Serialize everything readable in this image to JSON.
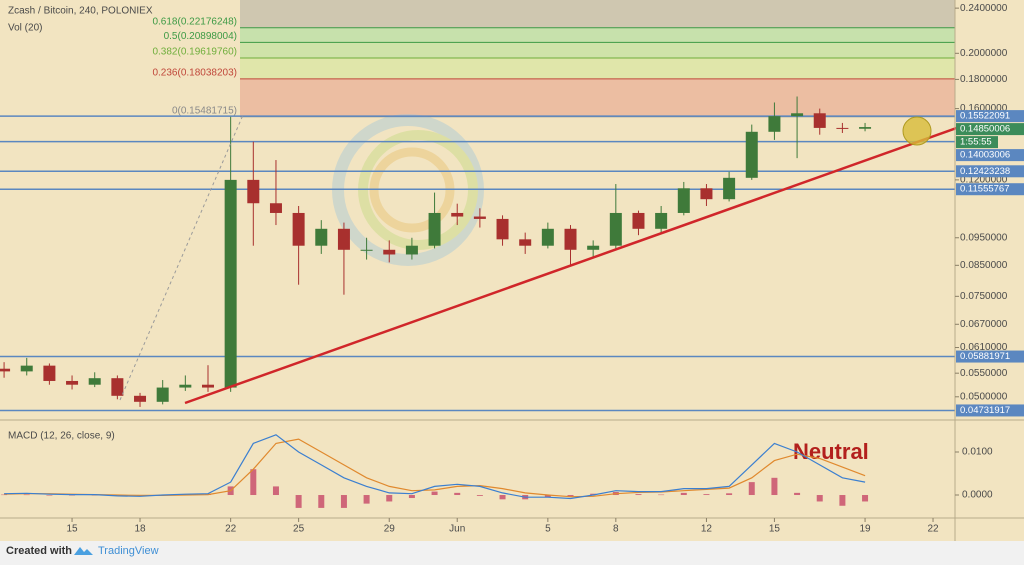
{
  "chart_data": {
    "type": "candlestick",
    "title": "Zcash / Bitcoin, 240, POLONIEX",
    "volume_label": "Vol (20)",
    "log": true,
    "ylim": [
      0.0459,
      0.248
    ],
    "yticks": [
      {
        "value": 0.24,
        "label": "0.2400000"
      },
      {
        "value": 0.2,
        "label": "0.2000000"
      },
      {
        "value": 0.18,
        "label": "0.1800000"
      },
      {
        "value": 0.16,
        "label": "0.1600000"
      },
      {
        "value": 0.12,
        "label": "0.1200000"
      },
      {
        "value": 0.095,
        "label": "0.0950000"
      },
      {
        "value": 0.085,
        "label": "0.0850000"
      },
      {
        "value": 0.075,
        "label": "0.0750000"
      },
      {
        "value": 0.067,
        "label": "0.0670000"
      },
      {
        "value": 0.061,
        "label": "0.0610000"
      },
      {
        "value": 0.055,
        "label": "0.0550000"
      },
      {
        "value": 0.05,
        "label": "0.0500000"
      }
    ],
    "xlim": [
      -3.18,
      38.97
    ],
    "xticks": [
      {
        "value": 0,
        "label": "15"
      },
      {
        "value": 3,
        "label": "18"
      },
      {
        "value": 7,
        "label": "22"
      },
      {
        "value": 10,
        "label": "25"
      },
      {
        "value": 14,
        "label": "29"
      },
      {
        "value": 17,
        "label": "Jun"
      },
      {
        "value": 21,
        "label": "5"
      },
      {
        "value": 24,
        "label": "8"
      },
      {
        "value": 28,
        "label": "12"
      },
      {
        "value": 31,
        "label": "15"
      },
      {
        "value": 35,
        "label": "19"
      },
      {
        "value": 38,
        "label": "22"
      }
    ],
    "x": [
      -3,
      -2,
      -1,
      0,
      1,
      2,
      3,
      4,
      5,
      6,
      7,
      8,
      9,
      10,
      11,
      12,
      13,
      14,
      15,
      16,
      17,
      18,
      19,
      20,
      21,
      22,
      23,
      24,
      25,
      26,
      27,
      28,
      29,
      30,
      31,
      32,
      33,
      34,
      35
    ],
    "open": [
      0.056,
      0.0554,
      0.0567,
      0.0533,
      0.0525,
      0.0539,
      0.0502,
      0.049,
      0.0519,
      0.0525,
      0.0519,
      0.12,
      0.1092,
      0.105,
      0.092,
      0.0985,
      0.0905,
      0.0905,
      0.0888,
      0.092,
      0.105,
      0.1035,
      0.1025,
      0.0944,
      0.092,
      0.0985,
      0.0905,
      0.092,
      0.105,
      0.0985,
      0.105,
      0.116,
      0.111,
      0.121,
      0.1457,
      0.1552,
      0.157,
      0.148,
      0.1475
    ],
    "high": [
      0.0575,
      0.0585,
      0.0572,
      0.0545,
      0.0552,
      0.0545,
      0.0508,
      0.0535,
      0.0545,
      0.0568,
      0.1548,
      0.14,
      0.13,
      0.108,
      0.102,
      0.101,
      0.095,
      0.094,
      0.095,
      0.114,
      0.109,
      0.107,
      0.104,
      0.097,
      0.101,
      0.1,
      0.094,
      0.118,
      0.106,
      0.108,
      0.119,
      0.118,
      0.124,
      0.15,
      0.164,
      0.168,
      0.16,
      0.151,
      0.151
    ],
    "low": [
      0.054,
      0.0545,
      0.0525,
      0.0515,
      0.052,
      0.0495,
      0.048,
      0.0485,
      0.0512,
      0.051,
      0.051,
      0.092,
      0.1,
      0.0786,
      0.089,
      0.0755,
      0.087,
      0.086,
      0.087,
      0.091,
      0.1,
      0.099,
      0.092,
      0.089,
      0.091,
      0.085,
      0.088,
      0.091,
      0.096,
      0.097,
      0.104,
      0.108,
      0.11,
      0.12,
      0.141,
      0.131,
      0.144,
      0.145,
      0.146
    ],
    "close": [
      0.0554,
      0.0567,
      0.0533,
      0.0525,
      0.0539,
      0.0502,
      0.049,
      0.0519,
      0.0525,
      0.0519,
      0.12,
      0.1092,
      0.105,
      0.092,
      0.0985,
      0.0905,
      0.0905,
      0.0888,
      0.092,
      0.105,
      0.1035,
      0.1025,
      0.0944,
      0.092,
      0.0985,
      0.0905,
      0.092,
      0.105,
      0.0985,
      0.105,
      0.116,
      0.111,
      0.121,
      0.1457,
      0.1552,
      0.157,
      0.148,
      0.1475,
      0.1485
    ],
    "up_color": "#3f7a3a",
    "down_color": "#a8302e",
    "hlines": [
      0.15522091,
      0.14003006,
      0.12423238,
      0.11555767,
      0.05881971,
      0.04731917
    ],
    "hline_color": "#5b87c0",
    "last_price": 0.14850006,
    "last_color": "#3c8c5a",
    "countdown": "1:55:55",
    "fib": [
      {
        "value": 0.15481715,
        "label": "0(0.15481715)",
        "color": "#8a8a8a"
      },
      {
        "value": 0.18038203,
        "label": "0.236(0.18038203)",
        "color": "#c0473a"
      },
      {
        "value": 0.1961976,
        "label": "0.382(0.19619760)",
        "color": "#6fae3c"
      },
      {
        "value": 0.20898004,
        "label": "0.5(0.20898004)",
        "color": "#3d9a45"
      },
      {
        "value": 0.22176248,
        "label": "0.618(0.22176248)",
        "color": "#3d9a45"
      }
    ],
    "annotation": "Neutral",
    "macd": {
      "title": "MACD (12, 26, close, 9)",
      "ylim": [
        -0.00488,
        0.01628
      ],
      "yticks": [
        {
          "value": 0.01,
          "label": "0.0100"
        },
        {
          "value": 0,
          "label": "0.0000"
        }
      ],
      "macd": {
        "color": "#3b7fd0",
        "values": [
          0.0003,
          0.0004,
          0.0002,
          0.0001,
          0.0001,
          -0.0002,
          -0.0003,
          0,
          0.0002,
          0.0003,
          0.003,
          0.012,
          0.014,
          0.01,
          0.007,
          0.004,
          0.002,
          0.0005,
          0.0003,
          0.002,
          0.0025,
          0.002,
          0.0005,
          -0.0005,
          -0.0005,
          -0.0008,
          0,
          0.001,
          0.0008,
          0.0008,
          0.0015,
          0.0015,
          0.002,
          0.007,
          0.012,
          0.01,
          0.007,
          0.004,
          0.003
        ]
      },
      "signal": {
        "color": "#e0892e",
        "values": [
          0.0002,
          0.0003,
          0.0003,
          0.0002,
          0.0001,
          0,
          -0.0001,
          -0.0001,
          0,
          0.0001,
          0.001,
          0.006,
          0.012,
          0.013,
          0.01,
          0.007,
          0.004,
          0.002,
          0.001,
          0.0012,
          0.002,
          0.0022,
          0.0015,
          0.0005,
          0,
          -0.0004,
          -0.0003,
          0.0003,
          0.0006,
          0.0007,
          0.001,
          0.0013,
          0.0016,
          0.004,
          0.008,
          0.0095,
          0.0085,
          0.0065,
          0.0045
        ]
      },
      "histogram": {
        "color": "#c0305a",
        "values": [
          0.0001,
          0.0001,
          -0.0001,
          -0.0001,
          0,
          -0.0002,
          -0.0002,
          0.0001,
          0.0002,
          0.0002,
          0.002,
          0.006,
          0.002,
          -0.003,
          -0.003,
          -0.003,
          -0.002,
          -0.0015,
          -0.0007,
          0.0008,
          0.0005,
          -0.0002,
          -0.001,
          -0.001,
          -0.0005,
          -0.0004,
          0.0003,
          0.0007,
          0.0002,
          0.0001,
          0.0005,
          0.0002,
          0.0004,
          0.003,
          0.004,
          0.0005,
          -0.0015,
          -0.0025,
          -0.0015
        ]
      }
    },
    "footer": {
      "created_with": "Created with",
      "brand": "TradingView"
    }
  }
}
